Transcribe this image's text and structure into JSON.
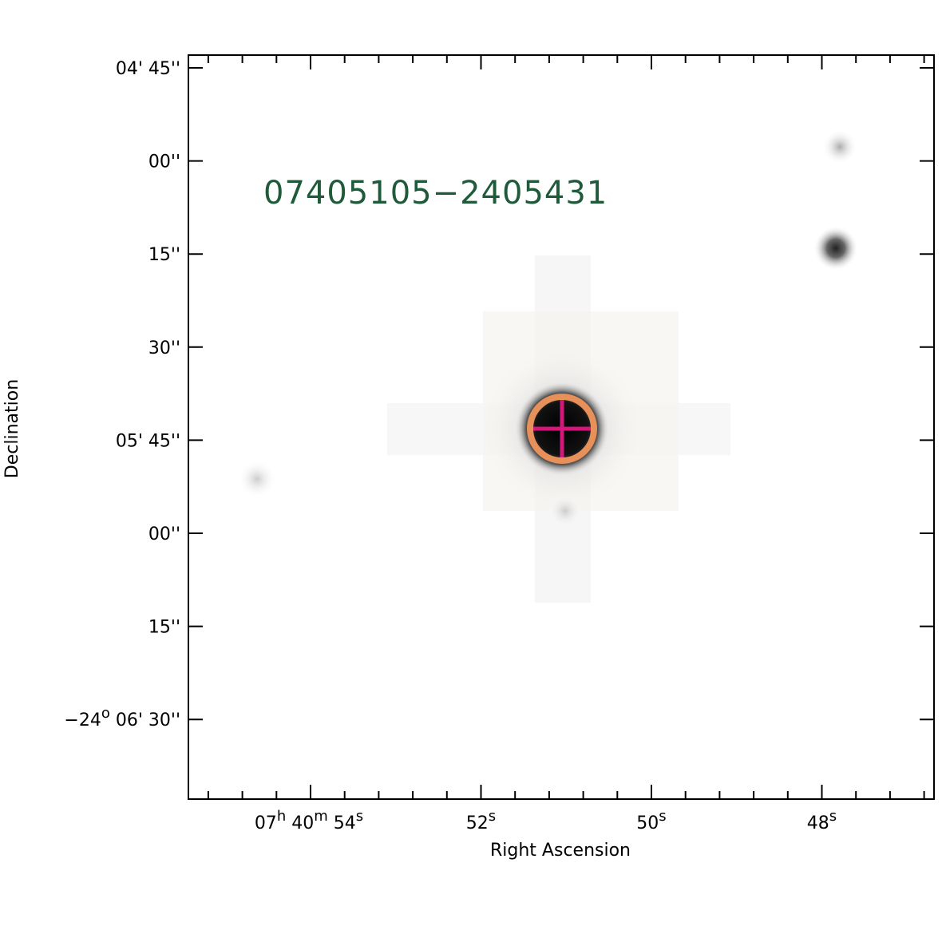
{
  "figure": {
    "title": "07405105−2405431",
    "x_axis": {
      "label": "Right Ascension",
      "tick_labels": [
        [
          "07",
          "h",
          " 40",
          "m",
          " 54",
          "s"
        ],
        [
          "52",
          "s"
        ],
        [
          "50",
          "s"
        ],
        [
          "48",
          "s"
        ]
      ]
    },
    "y_axis": {
      "label": "Declination",
      "tick_labels": [
        [
          "04' 45''"
        ],
        [
          "00''"
        ],
        [
          "15''"
        ],
        [
          "30''"
        ],
        [
          "05' 45''"
        ],
        [
          "00''"
        ],
        [
          "15''"
        ],
        [
          "−24",
          "o",
          " 06' 30''"
        ]
      ]
    }
  }
}
